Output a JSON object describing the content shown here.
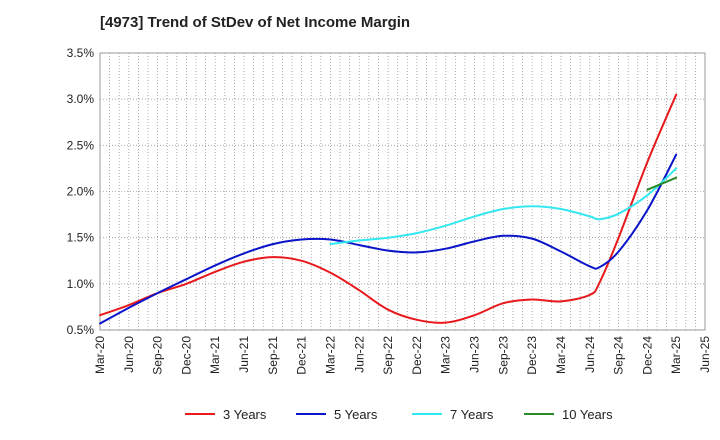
{
  "chart_data": {
    "type": "line",
    "title": "[4973]  Trend of StDev of Net Income Margin",
    "xlabel": "",
    "ylabel": "",
    "x_ticks": [
      "Mar-20",
      "Jun-20",
      "Sep-20",
      "Dec-20",
      "Mar-21",
      "Jun-21",
      "Sep-21",
      "Dec-21",
      "Mar-22",
      "Jun-22",
      "Sep-22",
      "Dec-22",
      "Mar-23",
      "Jun-23",
      "Sep-23",
      "Dec-23",
      "Mar-24",
      "Jun-24",
      "Sep-24",
      "Dec-24",
      "Mar-25",
      "Jun-25"
    ],
    "y_ticks": [
      "0.5%",
      "1.0%",
      "1.5%",
      "2.0%",
      "2.5%",
      "3.0%",
      "3.5%"
    ],
    "ylim": [
      0.5,
      3.5
    ],
    "grid": true,
    "legend_position": "bottom",
    "series": [
      {
        "name": "3 Years",
        "color": "#e8191c",
        "points": [
          [
            "Mar-20",
            0.66
          ],
          [
            "Jun-20",
            0.77
          ],
          [
            "Sep-20",
            0.9
          ],
          [
            "Dec-20",
            1.0
          ],
          [
            "Mar-21",
            1.13
          ],
          [
            "Jun-21",
            1.24
          ],
          [
            "Sep-21",
            1.29
          ],
          [
            "Dec-21",
            1.25
          ],
          [
            "Mar-22",
            1.12
          ],
          [
            "Jun-22",
            0.93
          ],
          [
            "Sep-22",
            0.72
          ],
          [
            "Dec-22",
            0.61
          ],
          [
            "Mar-23",
            0.58
          ],
          [
            "Jun-23",
            0.66
          ],
          [
            "Sep-23",
            0.79
          ],
          [
            "Dec-23",
            0.83
          ],
          [
            "Mar-24",
            0.81
          ],
          [
            "Jun-24",
            0.88
          ],
          [
            "Jul-24",
            1.01
          ],
          [
            "Sep-24",
            1.5
          ],
          [
            "Dec-24",
            2.32
          ],
          [
            "Mar-25",
            3.05
          ]
        ]
      },
      {
        "name": "5 Years",
        "color": "#0a14c8",
        "points": [
          [
            "Mar-20",
            0.57
          ],
          [
            "Jun-20",
            0.74
          ],
          [
            "Sep-20",
            0.9
          ],
          [
            "Dec-20",
            1.05
          ],
          [
            "Mar-21",
            1.2
          ],
          [
            "Jun-21",
            1.33
          ],
          [
            "Sep-21",
            1.43
          ],
          [
            "Dec-21",
            1.48
          ],
          [
            "Mar-22",
            1.48
          ],
          [
            "Jun-22",
            1.42
          ],
          [
            "Sep-22",
            1.36
          ],
          [
            "Dec-22",
            1.34
          ],
          [
            "Mar-23",
            1.38
          ],
          [
            "Jun-23",
            1.46
          ],
          [
            "Sep-23",
            1.52
          ],
          [
            "Dec-23",
            1.49
          ],
          [
            "Mar-24",
            1.35
          ],
          [
            "Jun-24",
            1.19
          ],
          [
            "Jul-24",
            1.18
          ],
          [
            "Sep-24",
            1.35
          ],
          [
            "Dec-24",
            1.8
          ],
          [
            "Mar-25",
            2.4
          ]
        ]
      },
      {
        "name": "7 Years",
        "color": "#33e8f0",
        "points": [
          [
            "Mar-22",
            1.43
          ],
          [
            "Jun-22",
            1.47
          ],
          [
            "Sep-22",
            1.5
          ],
          [
            "Dec-22",
            1.55
          ],
          [
            "Mar-23",
            1.63
          ],
          [
            "Jun-23",
            1.73
          ],
          [
            "Sep-23",
            1.81
          ],
          [
            "Dec-23",
            1.84
          ],
          [
            "Mar-24",
            1.81
          ],
          [
            "Jun-24",
            1.73
          ],
          [
            "Jul-24",
            1.7
          ],
          [
            "Sep-24",
            1.76
          ],
          [
            "Dec-24",
            1.96
          ],
          [
            "Mar-25",
            2.25
          ]
        ]
      },
      {
        "name": "10 Years",
        "color": "#2a8a2a",
        "points": [
          [
            "Dec-24",
            2.02
          ],
          [
            "Mar-25",
            2.15
          ]
        ]
      }
    ]
  }
}
